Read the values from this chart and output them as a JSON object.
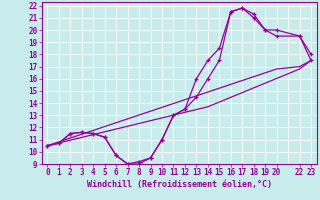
{
  "xlabel": "Windchill (Refroidissement éolien,°C)",
  "bg_color": "#c8ecec",
  "line_color": "#990099",
  "grid_color": "#ffffff",
  "spine_color": "#990099",
  "xlim": [
    -0.5,
    23.5
  ],
  "ylim": [
    9,
    22.3
  ],
  "xtick_positions": [
    0,
    1,
    2,
    3,
    4,
    5,
    6,
    7,
    8,
    9,
    10,
    11,
    12,
    13,
    14,
    15,
    16,
    17,
    18,
    19,
    20,
    22,
    23
  ],
  "xtick_labels": [
    "0",
    "1",
    "2",
    "3",
    "4",
    "5",
    "6",
    "7",
    "8",
    "9",
    "10",
    "11",
    "12",
    "13",
    "14",
    "15",
    "16",
    "17",
    "18",
    "19",
    "20",
    "22",
    "23"
  ],
  "ytick_positions": [
    9,
    10,
    11,
    12,
    13,
    14,
    15,
    16,
    17,
    18,
    19,
    20,
    21,
    22
  ],
  "ytick_labels": [
    "9",
    "10",
    "11",
    "12",
    "13",
    "14",
    "15",
    "16",
    "17",
    "18",
    "19",
    "20",
    "21",
    "22"
  ],
  "series1_x": [
    0,
    1,
    2,
    3,
    4,
    5,
    6,
    7,
    8,
    9,
    10,
    11,
    12,
    13,
    14,
    15,
    16,
    17,
    18,
    19,
    20,
    22,
    23
  ],
  "series1_y": [
    10.5,
    10.7,
    11.5,
    11.6,
    11.5,
    11.2,
    9.7,
    9.0,
    9.2,
    9.5,
    11.0,
    13.0,
    13.5,
    16.0,
    17.5,
    18.5,
    21.5,
    21.8,
    21.3,
    20.0,
    19.5,
    19.5,
    18.0
  ],
  "series2_x": [
    0,
    1,
    2,
    3,
    4,
    5,
    6,
    7,
    8,
    9,
    10,
    11,
    12,
    13,
    14,
    15,
    16,
    17,
    18,
    19,
    20,
    22,
    23
  ],
  "series2_y": [
    10.5,
    10.7,
    11.5,
    11.6,
    11.5,
    11.2,
    9.7,
    9.0,
    9.0,
    9.5,
    11.0,
    13.0,
    13.5,
    14.5,
    16.0,
    17.5,
    21.5,
    21.8,
    21.0,
    20.0,
    20.0,
    19.5,
    17.5
  ],
  "series3_x": [
    0,
    20,
    22,
    23
  ],
  "series3_y": [
    10.5,
    16.8,
    17.0,
    17.5
  ],
  "series4_x": [
    0,
    14,
    22,
    23
  ],
  "series4_y": [
    10.5,
    13.7,
    16.8,
    17.5
  ],
  "xlabel_fontsize": 6,
  "tick_fontsize": 5.5
}
